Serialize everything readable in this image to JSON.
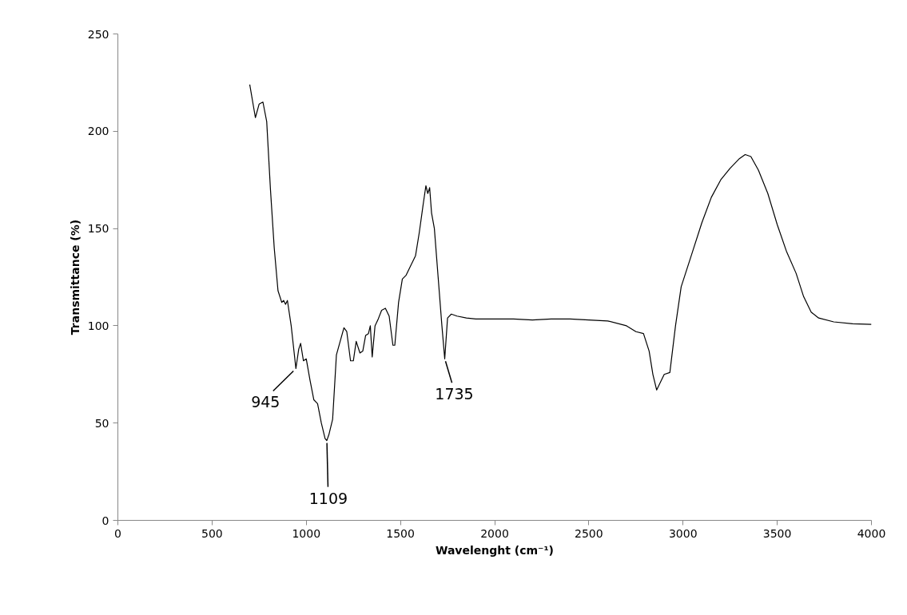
{
  "chart_data": {
    "type": "line",
    "xlabel": "Wavelenght (cm⁻¹)",
    "ylabel": "Transmittance (%)",
    "xlim": [
      0,
      4000
    ],
    "ylim": [
      0,
      250
    ],
    "xticks": [
      0,
      500,
      1000,
      1500,
      2000,
      2500,
      3000,
      3500,
      4000
    ],
    "yticks": [
      0,
      50,
      100,
      150,
      200,
      250
    ],
    "grid": false,
    "marker": "none",
    "line_style": "solid",
    "series": [
      {
        "color": "#000000",
        "x": [
          700,
          730,
          750,
          770,
          790,
          810,
          830,
          850,
          870,
          880,
          890,
          900,
          920,
          945,
          960,
          970,
          985,
          1000,
          1020,
          1040,
          1060,
          1080,
          1100,
          1109,
          1120,
          1140,
          1160,
          1180,
          1200,
          1215,
          1235,
          1250,
          1265,
          1285,
          1300,
          1315,
          1330,
          1340,
          1350,
          1365,
          1380,
          1400,
          1420,
          1440,
          1460,
          1470,
          1490,
          1510,
          1530,
          1550,
          1580,
          1600,
          1620,
          1635,
          1645,
          1655,
          1665,
          1680,
          1700,
          1720,
          1735,
          1750,
          1770,
          1800,
          1850,
          1900,
          2000,
          2100,
          2200,
          2300,
          2400,
          2500,
          2600,
          2700,
          2750,
          2790,
          2820,
          2840,
          2860,
          2880,
          2900,
          2930,
          2960,
          2990,
          3050,
          3100,
          3150,
          3200,
          3250,
          3300,
          3330,
          3360,
          3400,
          3450,
          3500,
          3550,
          3600,
          3640,
          3680,
          3720,
          3800,
          3900,
          4000
        ],
        "values": [
          224,
          207,
          214,
          215,
          205,
          170,
          140,
          118,
          112,
          113,
          111,
          113,
          100,
          78,
          88,
          91,
          82,
          83,
          72,
          62,
          60,
          50,
          42,
          41,
          44,
          52,
          85,
          92,
          99,
          97,
          82,
          82,
          92,
          86,
          87,
          95,
          96,
          100,
          84,
          100,
          103,
          108,
          109,
          105,
          90,
          90,
          112,
          124,
          126,
          130,
          136,
          148,
          162,
          172,
          168,
          171,
          158,
          150,
          125,
          100,
          83,
          104,
          106,
          105,
          104,
          103.5,
          103.5,
          103.5,
          103,
          103.5,
          103.5,
          103,
          102.5,
          100,
          97,
          96,
          87,
          75,
          67,
          71,
          75,
          76,
          100,
          120,
          138,
          153,
          166,
          175,
          181,
          186,
          188,
          187,
          180,
          168,
          152,
          138,
          127,
          115,
          107,
          104,
          102,
          101,
          100.7
        ]
      }
    ],
    "annotations": [
      {
        "text": "945",
        "x": 945,
        "y": 78
      },
      {
        "text": "1109",
        "x": 1109,
        "y": 41
      },
      {
        "text": "1735",
        "x": 1735,
        "y": 83
      }
    ]
  }
}
